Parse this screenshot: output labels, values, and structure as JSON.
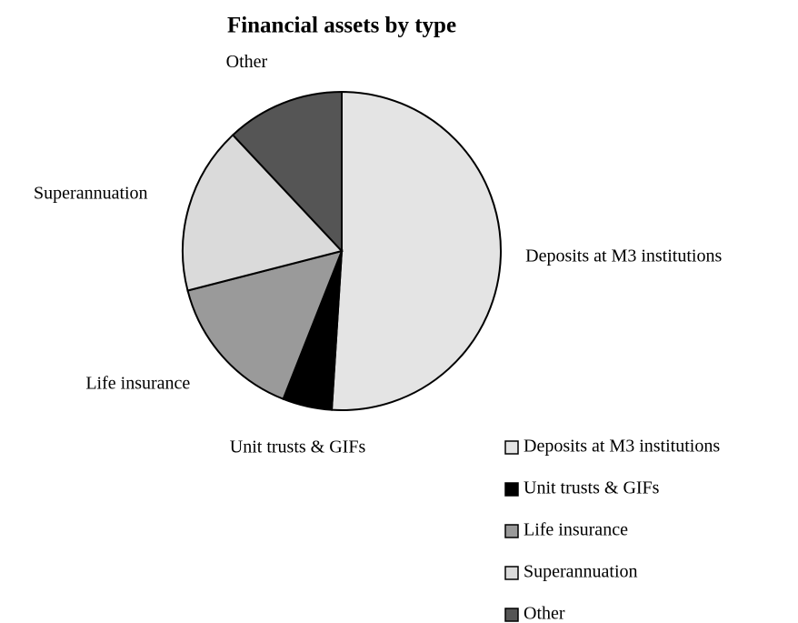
{
  "chart_data": {
    "type": "pie",
    "title": "Financial assets by type",
    "categories": [
      "Deposits at M3 institutions",
      "Unit trusts & GIFs",
      "Life insurance",
      "Superannuation",
      "Other"
    ],
    "values": [
      51,
      5,
      15,
      17,
      12
    ],
    "colors": [
      "#e4e4e4",
      "#000000",
      "#9a9a9a",
      "#dadada",
      "#555555"
    ],
    "legend": "bottom-right"
  }
}
